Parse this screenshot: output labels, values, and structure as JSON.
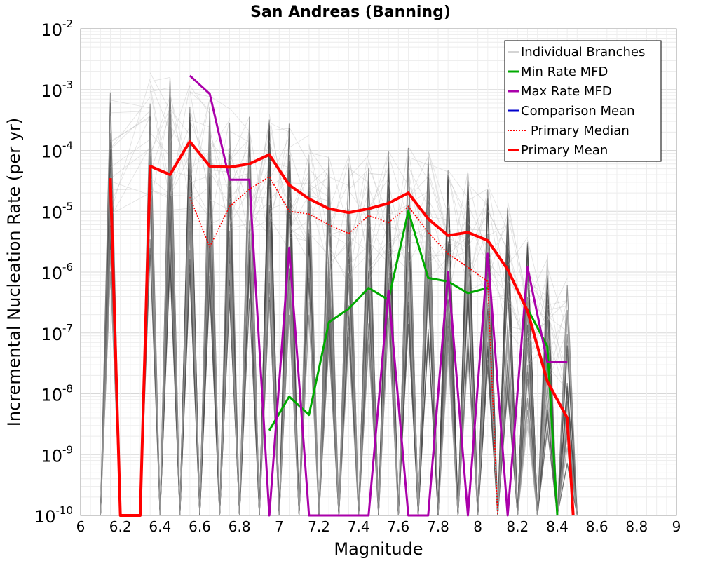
{
  "chart_data": {
    "type": "line",
    "title": "San Andreas (Banning)",
    "xlabel": "Magnitude",
    "ylabel": "Incremental Nucleation Rate (per yr)",
    "xlim": [
      6,
      9
    ],
    "ylim": [
      1e-10,
      0.01
    ],
    "yscale": "log",
    "grid": true,
    "legend_position": "top-right",
    "x_ticks": [
      "6",
      "6.2",
      "6.4",
      "6.6",
      "6.8",
      "7",
      "7.2",
      "7.4",
      "7.6",
      "7.8",
      "8",
      "8.2",
      "8.4",
      "8.6",
      "8.8",
      "9"
    ],
    "y_ticks": [
      {
        "base": "10",
        "exp": "-2"
      },
      {
        "base": "10",
        "exp": "-3"
      },
      {
        "base": "10",
        "exp": "-4"
      },
      {
        "base": "10",
        "exp": "-5"
      },
      {
        "base": "10",
        "exp": "-6"
      },
      {
        "base": "10",
        "exp": "-7"
      },
      {
        "base": "10",
        "exp": "-8"
      },
      {
        "base": "10",
        "exp": "-9"
      },
      {
        "base": "10",
        "exp": "-10"
      }
    ],
    "branch_peaks": [
      {
        "x": 6.15,
        "y": 0.0009
      },
      {
        "x": 6.35,
        "y": 0.002
      },
      {
        "x": 6.45,
        "y": 0.0016
      },
      {
        "x": 6.55,
        "y": 0.0014
      },
      {
        "x": 6.65,
        "y": 0.0008
      },
      {
        "x": 6.75,
        "y": 0.0005
      },
      {
        "x": 6.85,
        "y": 0.0004
      },
      {
        "x": 6.95,
        "y": 0.0004
      },
      {
        "x": 7.05,
        "y": 0.0003
      },
      {
        "x": 7.15,
        "y": 0.0002
      },
      {
        "x": 7.25,
        "y": 0.0001
      },
      {
        "x": 7.35,
        "y": 9e-05
      },
      {
        "x": 7.45,
        "y": 0.0001
      },
      {
        "x": 7.55,
        "y": 0.0001
      },
      {
        "x": 7.65,
        "y": 0.00012
      },
      {
        "x": 7.75,
        "y": 0.0001
      },
      {
        "x": 7.85,
        "y": 5e-05
      },
      {
        "x": 7.95,
        "y": 5e-05
      },
      {
        "x": 8.05,
        "y": 3e-05
      },
      {
        "x": 8.15,
        "y": 1.5e-05
      },
      {
        "x": 8.25,
        "y": 4e-06
      },
      {
        "x": 8.35,
        "y": 2e-06
      },
      {
        "x": 8.45,
        "y": 1e-06
      }
    ],
    "series": [
      {
        "name": "Individual Branches",
        "color": "#aaaaaa",
        "style": "solid"
      },
      {
        "name": "Min Rate MFD",
        "color": "#00aa00",
        "style": "solid",
        "x": [
          6.95,
          7.05,
          7.15,
          7.25,
          7.35,
          7.45,
          7.55,
          7.65,
          7.75,
          7.85,
          7.95,
          8.05,
          8.15,
          8.25,
          8.35,
          8.4
        ],
        "y": [
          2.5e-09,
          9e-09,
          4.5e-09,
          1.5e-07,
          2.5e-07,
          5.5e-07,
          3.5e-07,
          1e-05,
          8e-07,
          7e-07,
          4.5e-07,
          5.5e-07,
          null,
          2.5e-07,
          6e-08,
          1e-10
        ]
      },
      {
        "name": "Max Rate MFD",
        "color": "#aa00aa",
        "style": "solid",
        "x": [
          6.55,
          6.65,
          6.75,
          6.85,
          6.95,
          7.05,
          7.15,
          7.25,
          7.35,
          7.45,
          7.55,
          7.65,
          7.75,
          7.85,
          7.95,
          8.05,
          8.15,
          8.25,
          8.35,
          8.45
        ],
        "y": [
          0.0017,
          0.00085,
          3.3e-05,
          3.3e-05,
          1e-10,
          2.5e-06,
          1e-10,
          1e-10,
          1e-10,
          1e-10,
          5e-07,
          1e-10,
          1e-10,
          1e-06,
          1e-10,
          2e-06,
          1e-10,
          1.2e-06,
          3.3e-08,
          3.3e-08
        ]
      },
      {
        "name": "Comparison Mean",
        "color": "#0000cc",
        "style": "solid"
      },
      {
        "name": "Primary Median",
        "color": "#ff0000",
        "style": "dotted",
        "x": [
          6.55,
          6.65,
          6.75,
          6.85,
          6.95,
          7.05,
          7.15,
          7.25,
          7.35,
          7.45,
          7.55,
          7.65,
          7.75,
          7.85,
          7.95,
          8.05,
          8.1
        ],
        "y": [
          1.7e-05,
          2.6e-06,
          1.2e-05,
          2.3e-05,
          3.7e-05,
          1e-05,
          9e-06,
          6e-06,
          4.3e-06,
          8.5e-06,
          6.5e-06,
          1.2e-05,
          4.5e-06,
          2e-06,
          1.2e-06,
          7e-07,
          1e-10
        ]
      },
      {
        "name": "Primary Mean",
        "color": "#ff0000",
        "style": "solid",
        "x": [
          6.15,
          6.2,
          6.3,
          6.35,
          6.45,
          6.55,
          6.65,
          6.75,
          6.85,
          6.95,
          7.05,
          7.15,
          7.25,
          7.35,
          7.45,
          7.55,
          7.65,
          7.75,
          7.85,
          7.95,
          8.05,
          8.15,
          8.25,
          8.35,
          8.45,
          8.48
        ],
        "y": [
          3.5e-05,
          1e-10,
          1e-10,
          5.5e-05,
          4e-05,
          0.00014,
          5.5e-05,
          5.3e-05,
          6e-05,
          8.5e-05,
          2.7e-05,
          1.6e-05,
          1.1e-05,
          9.5e-06,
          1.1e-05,
          1.35e-05,
          2e-05,
          7.5e-06,
          4e-06,
          4.5e-06,
          3.3e-06,
          1.1e-06,
          2.3e-07,
          1.6e-08,
          4e-09,
          1e-10
        ]
      }
    ]
  }
}
